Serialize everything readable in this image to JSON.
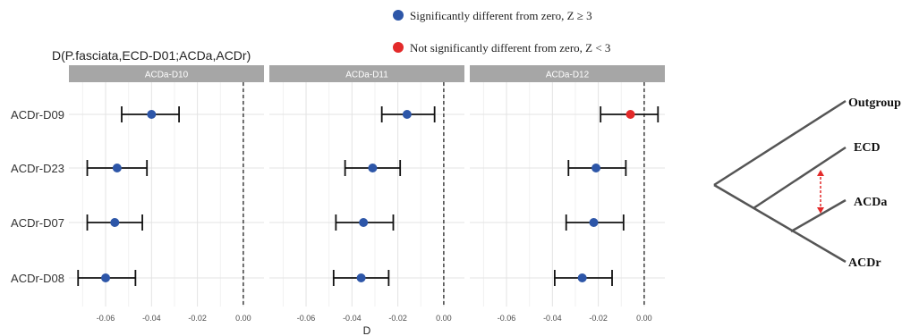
{
  "chart_data": {
    "type": "scatter",
    "title": "D(P.fasciata,ECD-D01;ACDa,ACDr)",
    "xlabel": "D",
    "xlim": [
      -0.076,
      0.009
    ],
    "x_ticks": [
      -0.06,
      -0.04,
      -0.02,
      0.0
    ],
    "x_tick_labels": [
      "-0.06",
      "-0.04",
      "-0.02",
      "0.00"
    ],
    "rows": [
      "ACDr-D09",
      "ACDr-D23",
      "ACDr-D07",
      "ACDr-D08"
    ],
    "reference_line": 0,
    "grid": true,
    "legend_position": "top",
    "legend": [
      {
        "label": "Significantly different from zero, Z ≥ 3",
        "color": "#2d56a8"
      },
      {
        "label": "Not significantly different from zero, Z < 3",
        "color": "#e32a2a"
      }
    ],
    "panels": [
      {
        "label": "ACDa-D10",
        "points": [
          {
            "row": "ACDr-D09",
            "d": -0.04,
            "lo": -0.053,
            "hi": -0.028,
            "significant": true
          },
          {
            "row": "ACDr-D23",
            "d": -0.055,
            "lo": -0.068,
            "hi": -0.042,
            "significant": true
          },
          {
            "row": "ACDr-D07",
            "d": -0.056,
            "lo": -0.068,
            "hi": -0.044,
            "significant": true
          },
          {
            "row": "ACDr-D08",
            "d": -0.06,
            "lo": -0.072,
            "hi": -0.047,
            "significant": true
          }
        ]
      },
      {
        "label": "ACDa-D11",
        "points": [
          {
            "row": "ACDr-D09",
            "d": -0.016,
            "lo": -0.027,
            "hi": -0.004,
            "significant": true
          },
          {
            "row": "ACDr-D23",
            "d": -0.031,
            "lo": -0.043,
            "hi": -0.019,
            "significant": true
          },
          {
            "row": "ACDr-D07",
            "d": -0.035,
            "lo": -0.047,
            "hi": -0.022,
            "significant": true
          },
          {
            "row": "ACDr-D08",
            "d": -0.036,
            "lo": -0.048,
            "hi": -0.024,
            "significant": true
          }
        ]
      },
      {
        "label": "ACDa-D12",
        "points": [
          {
            "row": "ACDr-D09",
            "d": -0.006,
            "lo": -0.019,
            "hi": 0.006,
            "significant": false
          },
          {
            "row": "ACDr-D23",
            "d": -0.021,
            "lo": -0.033,
            "hi": -0.008,
            "significant": true
          },
          {
            "row": "ACDr-D07",
            "d": -0.022,
            "lo": -0.034,
            "hi": -0.009,
            "significant": true
          },
          {
            "row": "ACDr-D08",
            "d": -0.027,
            "lo": -0.039,
            "hi": -0.014,
            "significant": true
          }
        ]
      }
    ]
  },
  "tree": {
    "taxa": [
      "Outgroup",
      "ECD",
      "ACDa",
      "ACDr"
    ],
    "arrow_color": "#e32a2a"
  },
  "colors": {
    "strip": "#a6a6a6",
    "grid_major": "#e3e3e3",
    "grid_minor": "#f1f1f1",
    "axis_text": "#4d4d4d",
    "tree_line": "#555555"
  }
}
